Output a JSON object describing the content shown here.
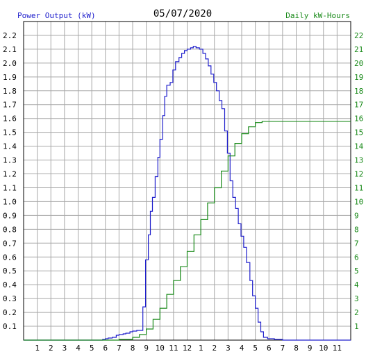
{
  "header": {
    "left_label": "Power Output (kW)",
    "date": "05/07/2020",
    "right_label": "Daily kW-Hours"
  },
  "colors": {
    "power": "#1f1fcc",
    "energy": "#1a8a1a",
    "grid": "#a8a8a8",
    "left_text": "#1f1fcc",
    "right_text": "#1a8a1a"
  },
  "chart_data": {
    "type": "line",
    "title": "05/07/2020",
    "xlabel": "",
    "ylabel": "Power Output (kW)",
    "y2label": "Daily kW-Hours",
    "x_tick_labels": [
      "1",
      "2",
      "3",
      "4",
      "5",
      "6",
      "7",
      "8",
      "9",
      "10",
      "11",
      "12",
      "1",
      "2",
      "3",
      "4",
      "5",
      "6",
      "7",
      "8",
      "9",
      "10",
      "11"
    ],
    "xlim": [
      0,
      24
    ],
    "ylim": [
      0,
      2.3
    ],
    "y2lim": [
      0,
      23
    ],
    "y_ticks": [
      0.1,
      0.2,
      0.3,
      0.4,
      0.5,
      0.6,
      0.7,
      0.8,
      0.9,
      1.0,
      1.1,
      1.2,
      1.3,
      1.4,
      1.5,
      1.6,
      1.7,
      1.8,
      1.9,
      2.0,
      2.1,
      2.2
    ],
    "y_tick_labels": [
      "0.1",
      "0.2",
      "0.3",
      "0.4",
      "0.5",
      "0.6",
      "0.7",
      "0.8",
      "0.9",
      "1.0",
      "1.1",
      "1.2",
      "1.3",
      "1.4",
      "1.5",
      "1.6",
      "1.7",
      "1.8",
      "1.9",
      "2.0",
      "2.1",
      "2.2"
    ],
    "y2_ticks": [
      1,
      2,
      3,
      4,
      5,
      6,
      7,
      8,
      9,
      10,
      11,
      12,
      13,
      14,
      15,
      16,
      17,
      18,
      19,
      20,
      21,
      22
    ],
    "y2_tick_labels": [
      "1",
      "2",
      "3",
      "4",
      "5",
      "6",
      "7",
      "8",
      "9",
      "10",
      "11",
      "12",
      "13",
      "14",
      "15",
      "16",
      "17",
      "18",
      "19",
      "20",
      "21",
      "22"
    ],
    "grid": true,
    "series": [
      {
        "name": "Power Output (kW)",
        "axis": "left",
        "step": true,
        "points": [
          [
            0,
            0
          ],
          [
            5.5,
            0
          ],
          [
            5.8,
            0.005
          ],
          [
            6.0,
            0.01
          ],
          [
            6.2,
            0.015
          ],
          [
            6.5,
            0.02
          ],
          [
            6.8,
            0.035
          ],
          [
            7.0,
            0.04
          ],
          [
            7.3,
            0.045
          ],
          [
            7.5,
            0.05
          ],
          [
            7.8,
            0.06
          ],
          [
            8.0,
            0.065
          ],
          [
            8.3,
            0.07
          ],
          [
            8.75,
            0.24
          ],
          [
            8.95,
            0.58
          ],
          [
            9.15,
            0.76
          ],
          [
            9.3,
            0.93
          ],
          [
            9.45,
            1.03
          ],
          [
            9.65,
            1.18
          ],
          [
            9.85,
            1.32
          ],
          [
            10.0,
            1.45
          ],
          [
            10.2,
            1.62
          ],
          [
            10.35,
            1.76
          ],
          [
            10.5,
            1.84
          ],
          [
            10.75,
            1.86
          ],
          [
            10.95,
            1.95
          ],
          [
            11.15,
            2.01
          ],
          [
            11.4,
            2.04
          ],
          [
            11.6,
            2.07
          ],
          [
            11.8,
            2.09
          ],
          [
            12.0,
            2.1
          ],
          [
            12.25,
            2.11
          ],
          [
            12.45,
            2.12
          ],
          [
            12.65,
            2.11
          ],
          [
            12.9,
            2.1
          ],
          [
            13.15,
            2.07
          ],
          [
            13.35,
            2.03
          ],
          [
            13.55,
            1.98
          ],
          [
            13.75,
            1.92
          ],
          [
            13.95,
            1.86
          ],
          [
            14.15,
            1.8
          ],
          [
            14.35,
            1.73
          ],
          [
            14.55,
            1.67
          ],
          [
            14.75,
            1.51
          ],
          [
            14.95,
            1.35
          ],
          [
            15.15,
            1.15
          ],
          [
            15.35,
            1.03
          ],
          [
            15.55,
            0.95
          ],
          [
            15.75,
            0.84
          ],
          [
            15.95,
            0.75
          ],
          [
            16.15,
            0.67
          ],
          [
            16.35,
            0.56
          ],
          [
            16.6,
            0.43
          ],
          [
            16.8,
            0.32
          ],
          [
            17.0,
            0.23
          ],
          [
            17.2,
            0.13
          ],
          [
            17.4,
            0.06
          ],
          [
            17.6,
            0.02
          ],
          [
            17.9,
            0.01
          ],
          [
            18.4,
            0.005
          ],
          [
            19.0,
            0.0
          ],
          [
            24,
            0.0
          ]
        ]
      },
      {
        "name": "Daily kW-Hours",
        "axis": "right",
        "step": true,
        "points": [
          [
            0,
            0
          ],
          [
            7.0,
            0.05
          ],
          [
            8.0,
            0.2
          ],
          [
            8.5,
            0.4
          ],
          [
            9.0,
            0.8
          ],
          [
            9.5,
            1.5
          ],
          [
            10.0,
            2.3
          ],
          [
            10.5,
            3.3
          ],
          [
            11.0,
            4.3
          ],
          [
            11.5,
            5.3
          ],
          [
            12.0,
            6.4
          ],
          [
            12.5,
            7.6
          ],
          [
            13.0,
            8.7
          ],
          [
            13.5,
            9.9
          ],
          [
            14.0,
            11.0
          ],
          [
            14.5,
            12.2
          ],
          [
            15.0,
            13.3
          ],
          [
            15.5,
            14.2
          ],
          [
            16.0,
            14.9
          ],
          [
            16.5,
            15.4
          ],
          [
            17.0,
            15.7
          ],
          [
            17.5,
            15.8
          ],
          [
            18.0,
            15.8
          ],
          [
            24,
            15.8
          ]
        ]
      }
    ]
  }
}
